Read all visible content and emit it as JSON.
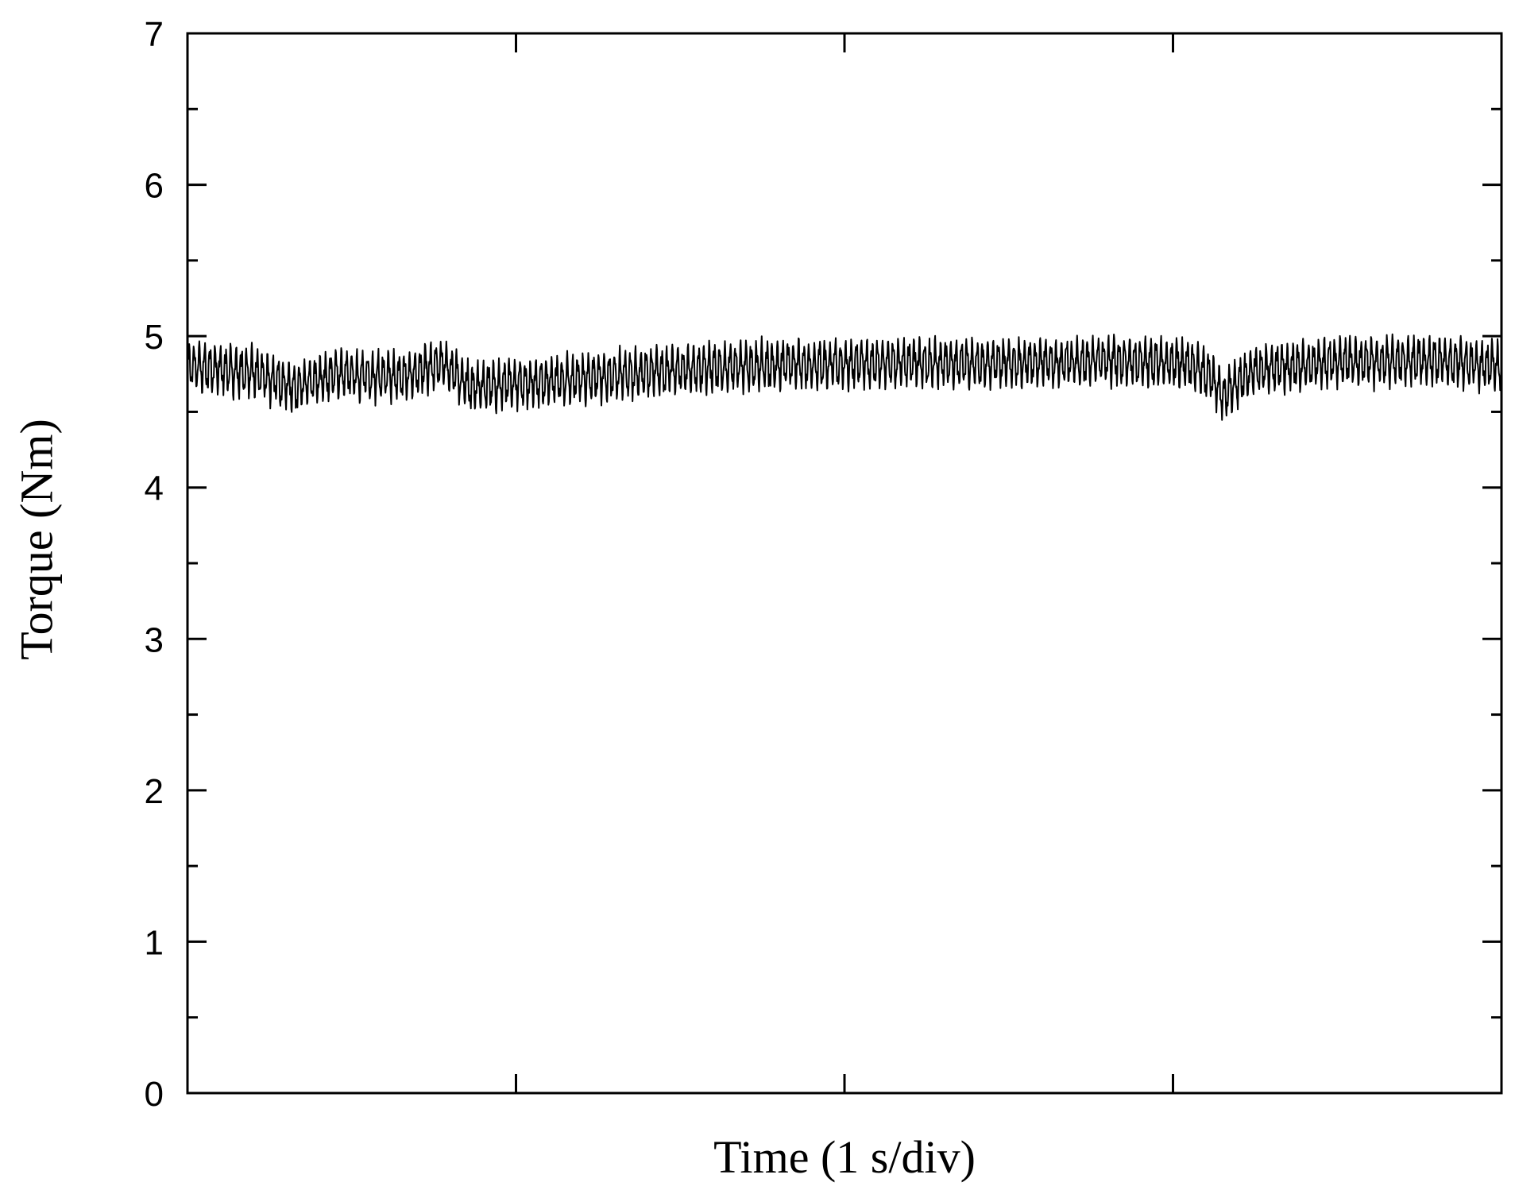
{
  "chart_data": {
    "type": "line",
    "xlabel": "Time (1 s/div)",
    "ylabel": "Torque (Nm)",
    "xlim": [
      0,
      4
    ],
    "ylim": [
      0,
      7
    ],
    "x_unit": "s",
    "y_unit": "Nm",
    "yticks": [
      "0",
      "1",
      "2",
      "3",
      "4",
      "5",
      "6",
      "7"
    ],
    "xticks_major": [
      0,
      1,
      2,
      3,
      4
    ],
    "x_tick_labels_shown": false,
    "grid": false,
    "legend": "none",
    "series": [
      {
        "color": "#000000",
        "description_points": [
          {
            "x": 0.0,
            "y": 4.8
          },
          {
            "x": 0.2,
            "y": 4.76
          },
          {
            "x": 0.33,
            "y": 4.66
          },
          {
            "x": 0.45,
            "y": 4.75
          },
          {
            "x": 0.65,
            "y": 4.73
          },
          {
            "x": 0.78,
            "y": 4.82
          },
          {
            "x": 0.86,
            "y": 4.66
          },
          {
            "x": 0.95,
            "y": 4.68
          },
          {
            "x": 1.2,
            "y": 4.72
          },
          {
            "x": 1.5,
            "y": 4.78
          },
          {
            "x": 1.8,
            "y": 4.81
          },
          {
            "x": 2.1,
            "y": 4.82
          },
          {
            "x": 2.5,
            "y": 4.82
          },
          {
            "x": 2.8,
            "y": 4.84
          },
          {
            "x": 3.05,
            "y": 4.82
          },
          {
            "x": 3.12,
            "y": 4.72
          },
          {
            "x": 3.15,
            "y": 4.6
          },
          {
            "x": 3.25,
            "y": 4.78
          },
          {
            "x": 3.5,
            "y": 4.83
          },
          {
            "x": 3.8,
            "y": 4.84
          },
          {
            "x": 4.0,
            "y": 4.8
          }
        ],
        "ripple_amplitude": 0.12,
        "ripple_cycles": 250
      }
    ]
  }
}
